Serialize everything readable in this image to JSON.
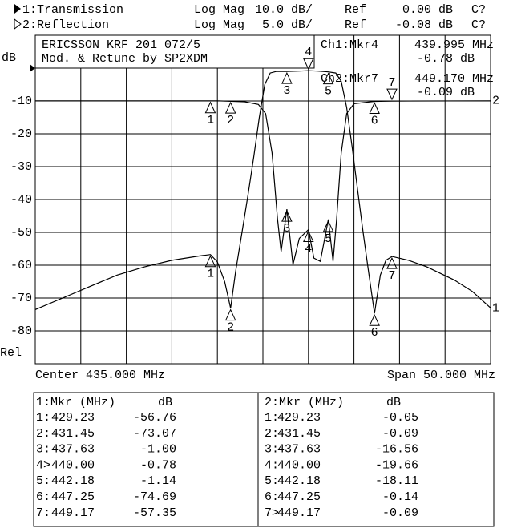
{
  "channels": [
    {
      "label": "1:Transmission",
      "format": "Log Mag",
      "scale": "10.0 dB/",
      "ref_label": "Ref",
      "ref": "0.00 dB",
      "cal": "C?"
    },
    {
      "label": "2:Reflection",
      "format": "Log Mag",
      "scale": "5.0 dB/",
      "ref_label": "Ref",
      "ref": "-0.08 dB",
      "cal": "C?"
    }
  ],
  "annotation": [
    "ERICSSON KRF 201 072/5",
    "Mod. & Retune by SP2XDM"
  ],
  "active_markers": [
    {
      "label": "Ch1:Mkr4",
      "freq": "439.995 MHz",
      "value": "-0.78 dB"
    },
    {
      "label": "Ch2:Mkr7",
      "freq": "449.170 MHz",
      "value": "-0.09 dB"
    }
  ],
  "chart_data": {
    "type": "line",
    "y_unit": "dB",
    "y_ref_label": "Rel",
    "x_center_label": "Center 435.000 MHz",
    "x_span_label": "Span 50.000 MHz",
    "xlim": [
      410,
      460
    ],
    "ylim": [
      -90,
      10
    ],
    "yticks": [
      -10,
      -20,
      -30,
      -40,
      -50,
      -60,
      -70,
      -80
    ],
    "y2lim": [
      -40.08,
      9.92
    ],
    "grid": true,
    "marker_labels": [
      "1",
      "2",
      "3",
      "4",
      "5",
      "6",
      "7"
    ],
    "series": [
      {
        "name": "1",
        "color": "#000000",
        "x": [
          410,
          413,
          416,
          419,
          422,
          425,
          428,
          429.23,
          430,
          430.8,
          431.45,
          432,
          432.7,
          433.4,
          434,
          434.6,
          435.2,
          435.8,
          436.5,
          437.63,
          439,
          440,
          441,
          442.18,
          443,
          443.6,
          444.2,
          444.8,
          445.4,
          446,
          446.6,
          447.25,
          447.9,
          448.5,
          449.17,
          451,
          453,
          456,
          458,
          460
        ],
        "values": [
          -73.5,
          -70,
          -66.5,
          -63,
          -60.5,
          -58.5,
          -57.2,
          -56.76,
          -59,
          -65,
          -73.07,
          -62,
          -50,
          -38,
          -27,
          -15,
          -5,
          -1.5,
          -1,
          -1,
          -0.9,
          -0.78,
          -0.9,
          -1.14,
          -1.5,
          -4,
          -12,
          -24,
          -37,
          -50,
          -62,
          -74.69,
          -63,
          -58.5,
          -57.35,
          -58.5,
          -60.5,
          -64.5,
          -68,
          -73
        ]
      },
      {
        "name": "2",
        "color": "#000000",
        "axis": "y2",
        "x": [
          410,
          430,
          433,
          434.5,
          435.3,
          436,
          436.6,
          437,
          437.63,
          438.3,
          439,
          440,
          440.6,
          441.3,
          442.18,
          442.7,
          443.1,
          443.6,
          444.2,
          445,
          447.25,
          449.17,
          460
        ],
        "values": [
          -0.05,
          -0.05,
          -0.2,
          -0.6,
          -2,
          -8,
          -18,
          -23,
          -16.56,
          -25,
          -21,
          -19.66,
          -24,
          -24.5,
          -18.11,
          -24.5,
          -18,
          -8,
          -2,
          -0.5,
          -0.14,
          -0.09,
          -0.05
        ]
      }
    ]
  },
  "marker_tables": [
    {
      "header": [
        "1:Mkr (MHz)",
        "dB"
      ],
      "rows": [
        [
          "1:",
          "429.23",
          "-56.76"
        ],
        [
          "2:",
          "431.45",
          "-73.07"
        ],
        [
          "3:",
          "437.63",
          "-1.00"
        ],
        [
          "4>",
          "440.00",
          "-0.78"
        ],
        [
          "5:",
          "442.18",
          "-1.14"
        ],
        [
          "6:",
          "447.25",
          "-74.69"
        ],
        [
          "7:",
          "449.17",
          "-57.35"
        ]
      ]
    },
    {
      "header": [
        "2:Mkr (MHz)",
        "dB"
      ],
      "rows": [
        [
          "1:",
          "429.23",
          "-0.05"
        ],
        [
          "2:",
          "431.45",
          "-0.09"
        ],
        [
          "3:",
          "437.63",
          "-16.56"
        ],
        [
          "4:",
          "440.00",
          "-19.66"
        ],
        [
          "5:",
          "442.18",
          "-18.11"
        ],
        [
          "6:",
          "447.25",
          "-0.14"
        ],
        [
          "7>",
          "449.17",
          "-0.09"
        ]
      ]
    }
  ]
}
